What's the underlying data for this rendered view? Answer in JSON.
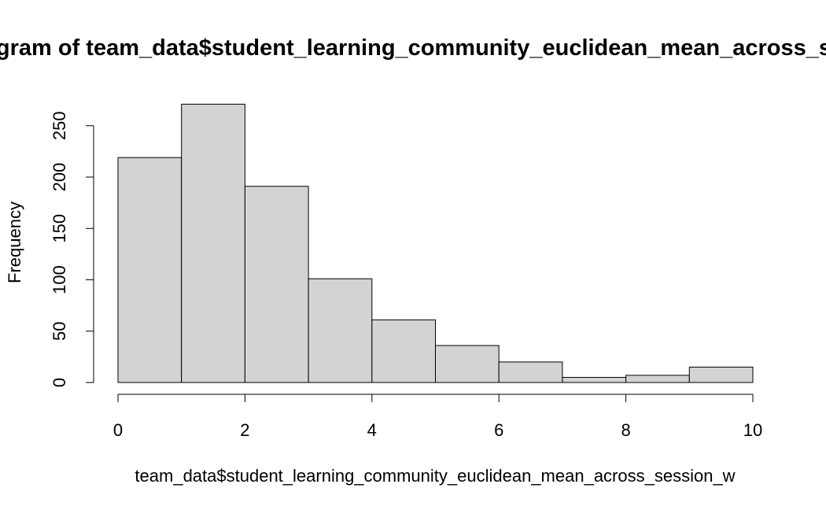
{
  "chart_data": {
    "type": "bar",
    "title": "Histogram of team_data$student_learning_community_euclidean_mean_across_session_w",
    "xlabel": "team_data$student_learning_community_euclidean_mean_across_session_w",
    "ylabel": "Frequency",
    "bin_edges": [
      0,
      1,
      2,
      3,
      4,
      5,
      6,
      7,
      8,
      9,
      10
    ],
    "values": [
      219,
      271,
      191,
      101,
      61,
      36,
      20,
      5,
      7,
      15
    ],
    "x_ticks": [
      0,
      2,
      4,
      6,
      8,
      10
    ],
    "y_ticks": [
      0,
      50,
      100,
      150,
      200,
      250
    ],
    "xlim": [
      0,
      10
    ],
    "ylim": [
      0,
      271
    ],
    "grid": false,
    "bar_color": "#d3d3d3",
    "bar_border_color": "#000000"
  }
}
